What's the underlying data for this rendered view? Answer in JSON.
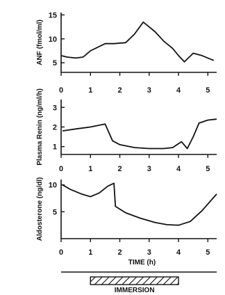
{
  "chart_data": [
    {
      "type": "line",
      "ylabel": "ANF (fmol/ml)",
      "yticks": [
        5,
        10,
        15
      ],
      "ylim": [
        3,
        15.5
      ],
      "xticks": [
        0,
        1,
        2,
        3,
        4,
        5
      ],
      "xlim": [
        0,
        5.3
      ],
      "series": [
        {
          "x": [
            0.0,
            0.2,
            0.5,
            0.75,
            1.0,
            1.5,
            1.8,
            2.2,
            2.5,
            2.8,
            3.2,
            3.5,
            3.8,
            4.0,
            4.2,
            4.5,
            4.8,
            5.0,
            5.2
          ],
          "y": [
            6.5,
            6.2,
            6.0,
            6.2,
            7.5,
            9.0,
            9.0,
            9.2,
            11.0,
            13.5,
            11.5,
            9.5,
            8.0,
            6.5,
            5.2,
            7.0,
            6.5,
            6.0,
            5.5
          ]
        }
      ]
    },
    {
      "type": "line",
      "ylabel": "Plasma Renin (ng/ml/h)",
      "yticks": [
        1,
        2,
        3
      ],
      "ylim": [
        0.6,
        3.4
      ],
      "xticks": [
        0,
        1,
        2,
        3,
        4,
        5
      ],
      "xlim": [
        0,
        5.3
      ],
      "series": [
        {
          "x": [
            0.05,
            0.5,
            1.0,
            1.5,
            1.75,
            2.0,
            2.5,
            3.0,
            3.5,
            3.8,
            4.1,
            4.3,
            4.5,
            4.7,
            5.0,
            5.3
          ],
          "y": [
            1.8,
            1.9,
            2.0,
            2.15,
            1.3,
            1.1,
            0.95,
            0.9,
            0.9,
            0.95,
            1.25,
            0.9,
            1.5,
            2.2,
            2.35,
            2.4
          ]
        }
      ]
    },
    {
      "type": "line",
      "ylabel": "Aldosterone (ng/dl)",
      "yticks": [
        5,
        10
      ],
      "ylim": [
        0,
        11
      ],
      "xticks": [
        0,
        1,
        2,
        3,
        4,
        5
      ],
      "xlabel": "TIME (h)",
      "xlim": [
        0,
        5.3
      ],
      "series": [
        {
          "x": [
            0.05,
            0.3,
            0.7,
            1.0,
            1.3,
            1.6,
            1.8,
            1.85,
            2.2,
            2.7,
            3.2,
            3.6,
            4.0,
            4.4,
            4.8,
            5.3
          ],
          "y": [
            10.0,
            9.2,
            8.3,
            7.8,
            8.5,
            9.8,
            10.3,
            6.0,
            4.8,
            3.8,
            3.0,
            2.6,
            2.5,
            3.2,
            5.2,
            8.3
          ]
        }
      ]
    }
  ],
  "immersion": {
    "label": "IMMERSION",
    "start_h": 1.0,
    "end_h": 4.0
  }
}
